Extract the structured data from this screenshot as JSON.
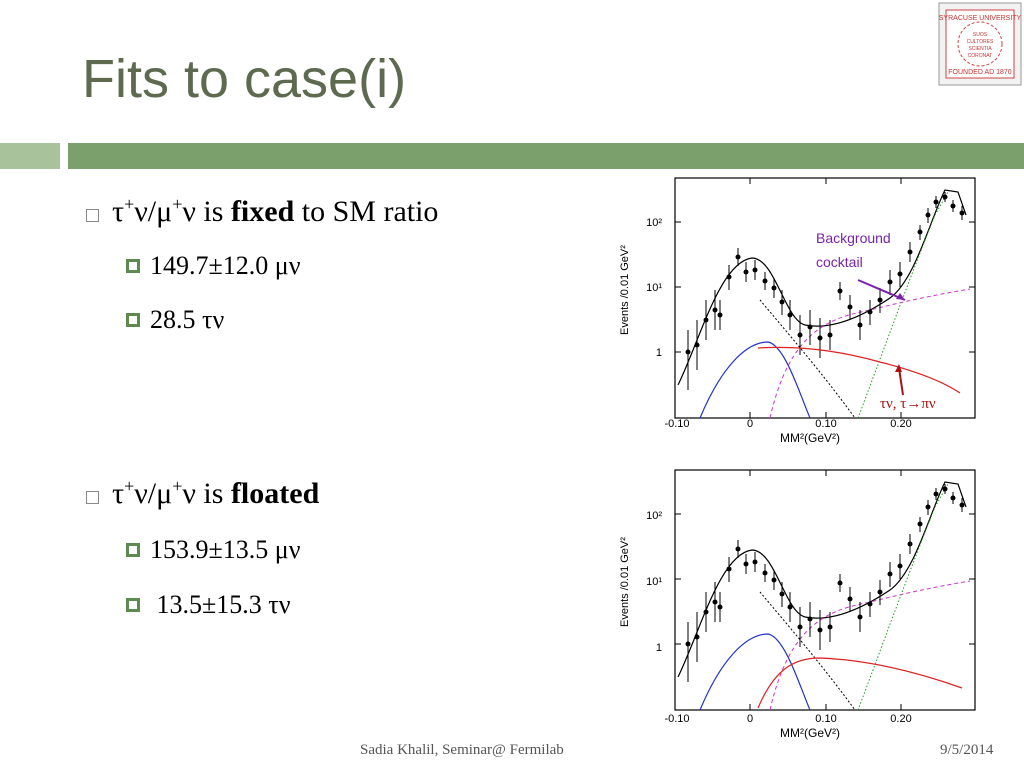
{
  "header": {
    "title": "Fits to case(i)"
  },
  "logo": {
    "top": "SYRACUSE UNIVERSITY",
    "bottom": "FOUNDED AD 1870",
    "motto": [
      "SUOS",
      "CULTORES",
      "SCIENTIA",
      "CORONAT"
    ]
  },
  "bullets": [
    {
      "text": [
        "τ",
        "+",
        "ν/μ",
        "+",
        "ν is ",
        "fixed",
        " to SM ratio"
      ],
      "sub": [
        "149.7±12.0 μν",
        "28.5 τν"
      ]
    },
    {
      "text": [
        "τ",
        "+",
        "ν/μ",
        "+",
        "ν is ",
        "floated"
      ],
      "sub": [
        "153.9±13.5 μν",
        " 13.5±15.3 τν"
      ]
    }
  ],
  "plots": [
    {
      "ylabel": "Events /0.01 GeV²",
      "xlabel": "MM²(GeV²)",
      "xticks": [
        "-0.10",
        "0",
        "0.10",
        "0.20"
      ],
      "yticks": [
        "10²",
        "10¹",
        "1"
      ],
      "annotations": [
        "Background",
        "cocktail",
        "τν, τ→πν"
      ]
    },
    {
      "ylabel": "Events /0.01 GeV²",
      "xlabel": "MM²(GeV²)",
      "xticks": [
        "-0.10",
        "0",
        "0.10",
        "0.20"
      ],
      "yticks": [
        "10²",
        "10¹",
        "1"
      ]
    }
  ],
  "footer": {
    "author": "Sadia Khalil, Seminar@ Fermilab",
    "date": "9/5/2014"
  }
}
